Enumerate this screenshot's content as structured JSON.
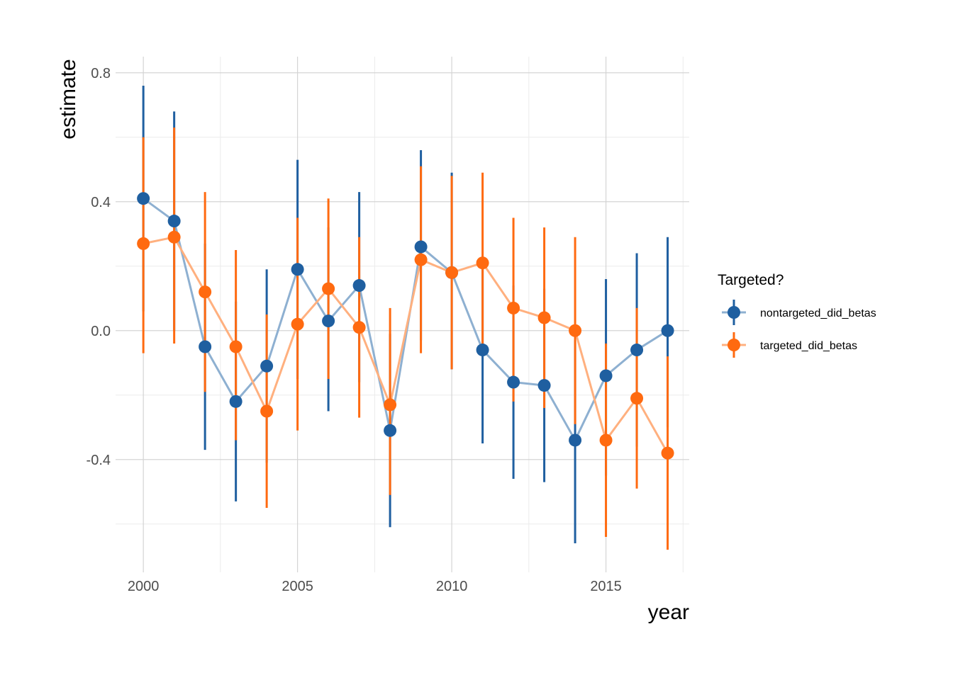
{
  "chart_data": {
    "type": "line",
    "xlabel": "year",
    "ylabel": "estimate",
    "xlim": [
      1999.1,
      2017.7
    ],
    "ylim": [
      -0.75,
      0.85
    ],
    "x_ticks": [
      2000,
      2005,
      2010,
      2015
    ],
    "x_tick_labels": [
      "2000",
      "2005",
      "2010",
      "2015"
    ],
    "y_ticks": [
      0.8,
      0.4,
      0.0,
      -0.4
    ],
    "y_tick_labels": [
      "0.8",
      "0.4",
      "0.0",
      "-0.4"
    ],
    "grid": true,
    "legend": {
      "title": "Targeted?",
      "position": "right"
    },
    "x": [
      2000,
      2001,
      2002,
      2003,
      2004,
      2005,
      2006,
      2007,
      2008,
      2009,
      2010,
      2011,
      2012,
      2013,
      2014,
      2015,
      2016,
      2017
    ],
    "series": [
      {
        "name": "nontargeted_did_betas",
        "color": "#1f5fa0",
        "line_color": "#8eb0d1",
        "values": [
          0.41,
          0.34,
          -0.05,
          -0.22,
          -0.11,
          0.19,
          0.03,
          0.14,
          -0.31,
          0.26,
          0.18,
          -0.06,
          -0.16,
          -0.17,
          -0.34,
          -0.14,
          -0.06,
          0.0
        ],
        "lower": [
          0.06,
          0.0,
          -0.37,
          -0.53,
          -0.41,
          -0.15,
          -0.25,
          -0.16,
          -0.61,
          -0.03,
          -0.12,
          -0.35,
          -0.46,
          -0.47,
          -0.66,
          -0.45,
          -0.36,
          -0.3
        ],
        "upper": [
          0.76,
          0.68,
          0.27,
          0.09,
          0.19,
          0.53,
          0.32,
          0.43,
          -0.01,
          0.56,
          0.49,
          0.23,
          0.14,
          0.13,
          -0.03,
          0.16,
          0.24,
          0.29
        ]
      },
      {
        "name": "targeted_did_betas",
        "color": "#ff6a10",
        "line_color": "#ffb07f",
        "values": [
          0.27,
          0.29,
          0.12,
          -0.05,
          -0.25,
          0.02,
          0.13,
          0.01,
          -0.23,
          0.22,
          0.18,
          0.21,
          0.07,
          0.04,
          0.0,
          -0.34,
          -0.21,
          -0.38
        ],
        "lower": [
          -0.07,
          -0.04,
          -0.19,
          -0.34,
          -0.55,
          -0.31,
          -0.15,
          -0.27,
          -0.51,
          -0.07,
          -0.12,
          -0.07,
          -0.22,
          -0.24,
          -0.29,
          -0.64,
          -0.49,
          -0.68
        ],
        "upper": [
          0.6,
          0.63,
          0.43,
          0.25,
          0.05,
          0.35,
          0.41,
          0.29,
          0.07,
          0.51,
          0.48,
          0.49,
          0.35,
          0.32,
          0.29,
          -0.04,
          0.07,
          -0.08
        ]
      }
    ]
  }
}
